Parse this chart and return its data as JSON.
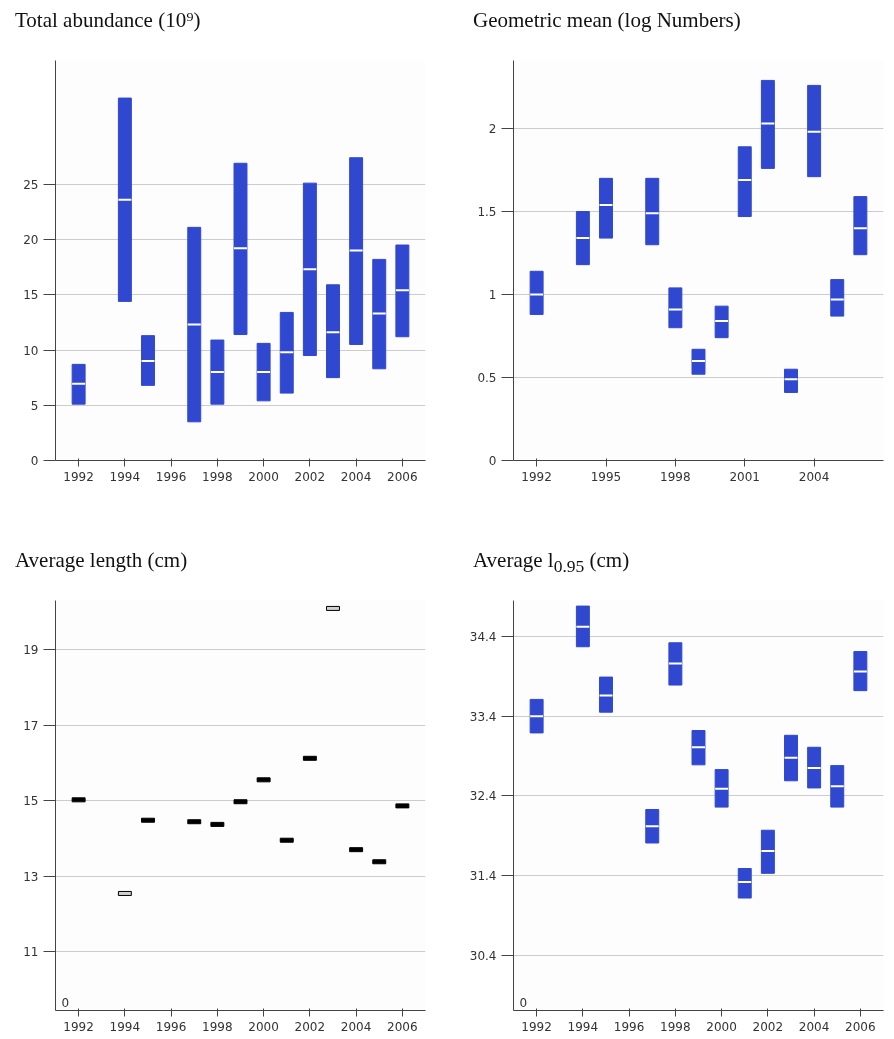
{
  "chart_data": [
    {
      "type": "box",
      "title": "Total abundance (10⁹)",
      "color": "#3048d0",
      "grid": "y",
      "x": [
        1992,
        1994,
        1995,
        1997,
        1998,
        1999,
        2000,
        2001,
        2002,
        2003,
        2004,
        2005,
        2006
      ],
      "boxes": [
        {
          "low": 5.1,
          "q1": 5.1,
          "median": 6.95,
          "q3": 8.7,
          "high": 8.7
        },
        {
          "low": 14.4,
          "q1": 14.4,
          "median": 23.6,
          "q3": 32.8,
          "high": 32.8
        },
        {
          "low": 6.8,
          "q1": 6.8,
          "median": 9.0,
          "q3": 11.3,
          "high": 11.3
        },
        {
          "low": 3.5,
          "q1": 3.5,
          "median": 12.3,
          "q3": 21.1,
          "high": 21.1
        },
        {
          "low": 5.1,
          "q1": 5.1,
          "median": 8.0,
          "q3": 10.9,
          "high": 10.9
        },
        {
          "low": 11.4,
          "q1": 11.4,
          "median": 19.2,
          "q3": 26.9,
          "high": 26.9
        },
        {
          "low": 5.4,
          "q1": 5.4,
          "median": 8.0,
          "q3": 10.6,
          "high": 10.6
        },
        {
          "low": 6.1,
          "q1": 6.1,
          "median": 9.8,
          "q3": 13.4,
          "high": 13.4
        },
        {
          "low": 9.5,
          "q1": 9.5,
          "median": 17.3,
          "q3": 25.1,
          "high": 25.1
        },
        {
          "low": 7.5,
          "q1": 7.5,
          "median": 11.6,
          "q3": 15.9,
          "high": 15.9
        },
        {
          "low": 10.5,
          "q1": 10.5,
          "median": 19.0,
          "q3": 27.4,
          "high": 27.4
        },
        {
          "low": 8.3,
          "q1": 8.3,
          "median": 13.3,
          "q3": 18.2,
          "high": 18.2
        },
        {
          "low": 11.2,
          "q1": 11.2,
          "median": 15.4,
          "q3": 19.5,
          "high": 19.5
        }
      ],
      "xlim": [
        1991,
        2007
      ],
      "xticks": [
        1992,
        1994,
        1996,
        1998,
        2000,
        2002,
        2004,
        2006
      ],
      "ylim": [
        0,
        36.2
      ],
      "yticks": [
        0,
        5,
        10,
        15,
        20,
        25
      ]
    },
    {
      "type": "box",
      "title": "Geometric mean (log Numbers)",
      "color": "#3048d0",
      "grid": "y",
      "x": [
        1992,
        1994,
        1995,
        1997,
        1998,
        1999,
        2000,
        2001,
        2002,
        2003,
        2004,
        2005,
        2006
      ],
      "boxes": [
        {
          "low": 0.88,
          "q1": 0.88,
          "median": 1.0,
          "q3": 1.14,
          "high": 1.14
        },
        {
          "low": 1.18,
          "q1": 1.18,
          "median": 1.34,
          "q3": 1.5,
          "high": 1.5
        },
        {
          "low": 1.34,
          "q1": 1.34,
          "median": 1.54,
          "q3": 1.7,
          "high": 1.7
        },
        {
          "low": 1.3,
          "q1": 1.3,
          "median": 1.49,
          "q3": 1.7,
          "high": 1.7
        },
        {
          "low": 0.8,
          "q1": 0.8,
          "median": 0.91,
          "q3": 1.04,
          "high": 1.04
        },
        {
          "low": 0.52,
          "q1": 0.52,
          "median": 0.6,
          "q3": 0.67,
          "high": 0.67
        },
        {
          "low": 0.74,
          "q1": 0.74,
          "median": 0.84,
          "q3": 0.93,
          "high": 0.93
        },
        {
          "low": 1.47,
          "q1": 1.47,
          "median": 1.69,
          "q3": 1.89,
          "high": 1.89
        },
        {
          "low": 1.76,
          "q1": 1.76,
          "median": 2.03,
          "q3": 2.29,
          "high": 2.29
        },
        {
          "low": 0.41,
          "q1": 0.41,
          "median": 0.49,
          "q3": 0.55,
          "high": 0.55
        },
        {
          "low": 1.71,
          "q1": 1.71,
          "median": 1.98,
          "q3": 2.26,
          "high": 2.26
        },
        {
          "low": 0.87,
          "q1": 0.87,
          "median": 0.97,
          "q3": 1.09,
          "high": 1.09
        },
        {
          "low": 1.24,
          "q1": 1.24,
          "median": 1.4,
          "q3": 1.59,
          "high": 1.59
        }
      ],
      "xlim": [
        1991,
        2007
      ],
      "xticks": [
        1992,
        1995,
        1998,
        2001,
        2004
      ],
      "ylim": [
        0,
        2.41
      ],
      "yticks": [
        0,
        0.5,
        1,
        1.5,
        2
      ]
    },
    {
      "type": "scatter",
      "title": "Average length (cm)",
      "grid": "y",
      "x": [
        1992,
        1994,
        1995,
        1997,
        1998,
        1999,
        2000,
        2001,
        2002,
        2003,
        2004,
        2005,
        2006
      ],
      "values": [
        15.02,
        12.54,
        14.48,
        14.44,
        14.37,
        14.97,
        15.55,
        13.95,
        16.12,
        20.09,
        13.7,
        13.38,
        14.86
      ],
      "colors": [
        "#000000",
        "#d0d0d0",
        "#000000",
        "#000000",
        "#000000",
        "#000000",
        "#000000",
        "#000000",
        "#000000",
        "#d0d0d0",
        "#000000",
        "#000000",
        "#000000"
      ],
      "xlim": [
        1991,
        2007
      ],
      "xticks": [
        1992,
        1994,
        1996,
        1998,
        2000,
        2002,
        2004,
        2006
      ],
      "ylim": [
        9.44,
        20.3
      ],
      "yticks": [
        11,
        13,
        15,
        17,
        19
      ],
      "annotations": [
        "0"
      ]
    },
    {
      "type": "box",
      "title": "Average l$_{0.95}$ (cm)",
      "color": "#3048d0",
      "grid": "y",
      "x": [
        1992,
        1994,
        1995,
        1997,
        1998,
        1999,
        2000,
        2001,
        2002,
        2003,
        2004,
        2005,
        2006
      ],
      "boxes": [
        {
          "low": 33.19,
          "q1": 33.19,
          "median": 33.4,
          "q3": 33.61,
          "high": 33.61
        },
        {
          "low": 34.27,
          "q1": 34.27,
          "median": 34.52,
          "q3": 34.78,
          "high": 34.78
        },
        {
          "low": 33.45,
          "q1": 33.45,
          "median": 33.66,
          "q3": 33.89,
          "high": 33.89
        },
        {
          "low": 31.81,
          "q1": 31.81,
          "median": 32.02,
          "q3": 32.23,
          "high": 32.23
        },
        {
          "low": 33.79,
          "q1": 33.79,
          "median": 34.06,
          "q3": 34.32,
          "high": 34.32
        },
        {
          "low": 32.79,
          "q1": 32.79,
          "median": 33.01,
          "q3": 33.22,
          "high": 33.22
        },
        {
          "low": 32.26,
          "q1": 32.26,
          "median": 32.49,
          "q3": 32.73,
          "high": 32.73
        },
        {
          "low": 31.12,
          "q1": 31.12,
          "median": 31.32,
          "q3": 31.49,
          "high": 31.49
        },
        {
          "low": 31.43,
          "q1": 31.43,
          "median": 31.71,
          "q3": 31.97,
          "high": 31.97
        },
        {
          "low": 32.59,
          "q1": 32.59,
          "median": 32.88,
          "q3": 33.16,
          "high": 33.16
        },
        {
          "low": 32.5,
          "q1": 32.5,
          "median": 32.75,
          "q3": 33.01,
          "high": 33.01
        },
        {
          "low": 32.26,
          "q1": 32.26,
          "median": 32.52,
          "q3": 32.78,
          "high": 32.78
        },
        {
          "low": 33.72,
          "q1": 33.72,
          "median": 33.96,
          "q3": 34.21,
          "high": 34.21
        }
      ],
      "xlim": [
        1991,
        2007
      ],
      "xticks": [
        1992,
        1994,
        1996,
        1998,
        2000,
        2002,
        2004,
        2006
      ],
      "ylim": [
        29.71,
        34.85
      ],
      "yticks": [
        30.4,
        31.4,
        32.4,
        33.4,
        34.4
      ],
      "annotations": [
        "0"
      ]
    }
  ]
}
